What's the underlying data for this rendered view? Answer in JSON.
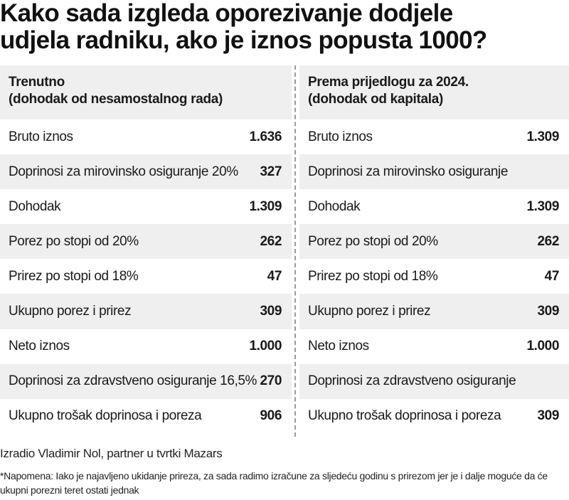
{
  "title": {
    "line1": "Kako sada izgleda oporezivanje dodjele",
    "line2": "udjela radniku, ako je iznos popusta 1000?"
  },
  "left": {
    "header_line1": "Trenutno",
    "header_line2": "(dohodak od nesamostalnog rada)",
    "rows": [
      {
        "label": "Bruto iznos",
        "value": "1.636"
      },
      {
        "label": "Doprinosi za mirovinsko osiguranje 20%",
        "value": "327"
      },
      {
        "label": "Dohodak",
        "value": "1.309"
      },
      {
        "label": "Porez po stopi od 20%",
        "value": "262"
      },
      {
        "label": "Prirez po stopi od 18%",
        "value": "47"
      },
      {
        "label": "Ukupno porez i prirez",
        "value": "309"
      },
      {
        "label": "Neto iznos",
        "value": "1.000"
      },
      {
        "label": "Doprinosi za zdravstveno osiguranje 16,5%",
        "value": "270"
      },
      {
        "label": "Ukupno trošak doprinosa i poreza",
        "value": "906"
      }
    ]
  },
  "right": {
    "header_line1": "Prema prijedlogu za 2024.",
    "header_line2": "(dohodak od kapitala)",
    "rows": [
      {
        "label": "Bruto iznos",
        "value": "1.309"
      },
      {
        "label": "Doprinosi za mirovinsko osiguranje",
        "value": ""
      },
      {
        "label": "Dohodak",
        "value": "1.309"
      },
      {
        "label": "Porez po stopi od 20%",
        "value": "262"
      },
      {
        "label": "Prirez po stopi od 18%",
        "value": "47"
      },
      {
        "label": "Ukupno porez i prirez",
        "value": "309"
      },
      {
        "label": "Neto iznos",
        "value": "1.000"
      },
      {
        "label": "Doprinosi za zdravstveno osiguranje",
        "value": ""
      },
      {
        "label": "Ukupno trošak doprinosa i poreza",
        "value": "309"
      }
    ]
  },
  "credit": "Izradio Vladimir Nol, partner u tvrtki Mazars",
  "note": "*Napomena: Iako je najavljeno ukidanje prireza, za sada radimo izračune za sljedeću godinu s prirezom jer je i dalje moguće da će ukupni porezni teret ostati jednak"
}
